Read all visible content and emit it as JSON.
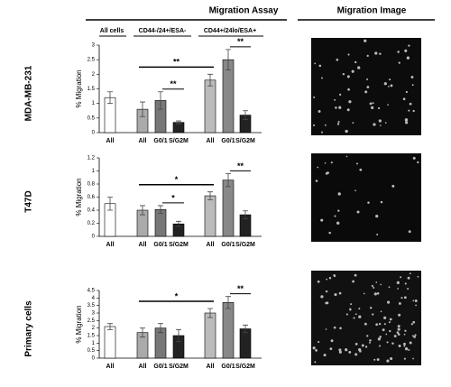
{
  "header": {
    "assay": "Migration Assay",
    "image": "Migration Image"
  },
  "column_groups": [
    "All cells",
    "CD44-/24+/ESA-",
    "CD44+/24lo/ESA+"
  ],
  "chart_data": [
    {
      "type": "bar",
      "title": "MDA-MB-231",
      "y_label": "% Migration",
      "categories": [
        "All",
        "All",
        "G0/1",
        "S/G2M",
        "All",
        "G0/1",
        "S/G2M"
      ],
      "values": [
        1.2,
        0.8,
        1.1,
        0.35,
        1.8,
        2.5,
        0.6
      ],
      "errors": [
        0.2,
        0.25,
        0.3,
        0.05,
        0.2,
        0.35,
        0.15
      ],
      "colors": [
        "#ffffff",
        "#aaaaaa",
        "#777777",
        "#222222",
        "#bbbbbb",
        "#888888",
        "#222222"
      ],
      "ylim": [
        0,
        3
      ],
      "yticks": [
        0,
        0.5,
        1,
        1.5,
        2,
        2.5,
        3
      ],
      "annotations": [
        "**",
        "**",
        "**"
      ]
    },
    {
      "type": "bar",
      "title": "T47D",
      "y_label": "% Migration",
      "categories": [
        "All",
        "All",
        "G0/1",
        "S/G2M",
        "All",
        "G0/1",
        "S/G2M"
      ],
      "values": [
        0.5,
        0.4,
        0.41,
        0.19,
        0.62,
        0.86,
        0.33
      ],
      "errors": [
        0.1,
        0.07,
        0.06,
        0.04,
        0.06,
        0.1,
        0.06
      ],
      "colors": [
        "#ffffff",
        "#aaaaaa",
        "#777777",
        "#222222",
        "#bbbbbb",
        "#888888",
        "#222222"
      ],
      "ylim": [
        0,
        1.2
      ],
      "yticks": [
        0,
        0.2,
        0.4,
        0.6,
        0.8,
        1,
        1.2
      ],
      "annotations": [
        "*",
        "*",
        "**"
      ]
    },
    {
      "type": "bar",
      "title": "Primary cells",
      "y_label": "% Migration",
      "categories": [
        "All",
        "All",
        "G0/1",
        "S/G2M",
        "All",
        "G0/1",
        "S/G2M"
      ],
      "values": [
        2.1,
        1.7,
        2.0,
        1.5,
        3.0,
        3.7,
        1.95
      ],
      "errors": [
        0.2,
        0.3,
        0.3,
        0.4,
        0.3,
        0.4,
        0.25
      ],
      "colors": [
        "#ffffff",
        "#aaaaaa",
        "#777777",
        "#222222",
        "#bbbbbb",
        "#888888",
        "#222222"
      ],
      "ylim": [
        0,
        4.5
      ],
      "yticks": [
        0,
        0.5,
        1,
        1.5,
        2,
        2.5,
        3,
        3.5,
        4,
        4.5
      ],
      "annotations": [
        "*",
        "**"
      ]
    }
  ]
}
